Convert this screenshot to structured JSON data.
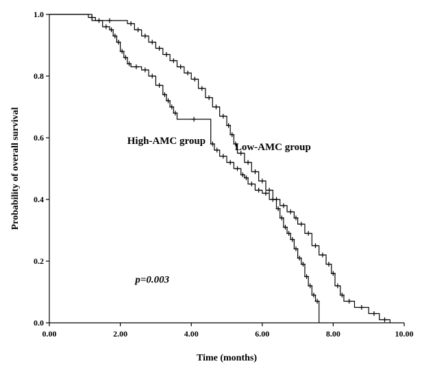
{
  "chart_data": {
    "type": "line",
    "subtype": "kaplan-meier-step",
    "xlabel": "Time (months)",
    "ylabel": "Probability of overall survival",
    "xlim": [
      0,
      10
    ],
    "ylim": [
      0,
      1
    ],
    "x_ticks": [
      "0.00",
      "2.00",
      "4.00",
      "6.00",
      "8.00",
      "10.00"
    ],
    "y_ticks": [
      "0.0",
      "0.2",
      "0.4",
      "0.6",
      "0.8",
      "1.0"
    ],
    "grid": false,
    "legend": "none",
    "series": [
      {
        "name": "High-AMC group",
        "color": "#000000",
        "x": [
          0,
          1.1,
          1.3,
          1.5,
          1.7,
          1.8,
          1.9,
          2.0,
          2.1,
          2.2,
          2.3,
          2.6,
          2.8,
          3.0,
          3.2,
          3.3,
          3.4,
          3.5,
          3.6,
          4.55,
          4.65,
          4.8,
          5.0,
          5.2,
          5.4,
          5.5,
          5.6,
          5.8,
          6.0,
          6.2,
          6.4,
          6.5,
          6.6,
          6.7,
          6.8,
          6.9,
          7.0,
          7.1,
          7.2,
          7.3,
          7.4,
          7.5,
          7.6
        ],
        "y": [
          1.0,
          0.99,
          0.98,
          0.96,
          0.95,
          0.93,
          0.91,
          0.88,
          0.86,
          0.84,
          0.83,
          0.82,
          0.8,
          0.77,
          0.74,
          0.72,
          0.7,
          0.68,
          0.66,
          0.58,
          0.56,
          0.54,
          0.52,
          0.5,
          0.48,
          0.47,
          0.45,
          0.43,
          0.42,
          0.4,
          0.37,
          0.34,
          0.31,
          0.29,
          0.27,
          0.24,
          0.21,
          0.19,
          0.15,
          0.12,
          0.09,
          0.07,
          0.0
        ]
      },
      {
        "name": "Low-AMC group",
        "color": "#000000",
        "x": [
          0,
          1.2,
          2.2,
          2.4,
          2.6,
          2.8,
          3.0,
          3.2,
          3.4,
          3.6,
          3.8,
          4.0,
          4.2,
          4.4,
          4.6,
          4.8,
          5.0,
          5.1,
          5.2,
          5.3,
          5.5,
          5.7,
          5.9,
          6.1,
          6.3,
          6.5,
          6.7,
          6.9,
          7.0,
          7.2,
          7.4,
          7.6,
          7.8,
          7.95,
          8.05,
          8.2,
          8.3,
          8.6,
          9.0,
          9.3,
          9.6
        ],
        "y": [
          1.0,
          0.98,
          0.97,
          0.95,
          0.93,
          0.91,
          0.89,
          0.87,
          0.85,
          0.83,
          0.81,
          0.79,
          0.76,
          0.73,
          0.7,
          0.67,
          0.64,
          0.61,
          0.58,
          0.55,
          0.52,
          0.49,
          0.46,
          0.43,
          0.4,
          0.38,
          0.36,
          0.34,
          0.32,
          0.29,
          0.25,
          0.22,
          0.19,
          0.16,
          0.12,
          0.09,
          0.07,
          0.05,
          0.03,
          0.01,
          0.0
        ]
      }
    ],
    "annotations": [
      {
        "text": "High-AMC group",
        "x": 3.3,
        "y": 0.58
      },
      {
        "text": "Low-AMC group",
        "x": 6.3,
        "y": 0.56
      },
      {
        "text": "p=0.003",
        "x": 2.9,
        "y": 0.13
      }
    ]
  }
}
